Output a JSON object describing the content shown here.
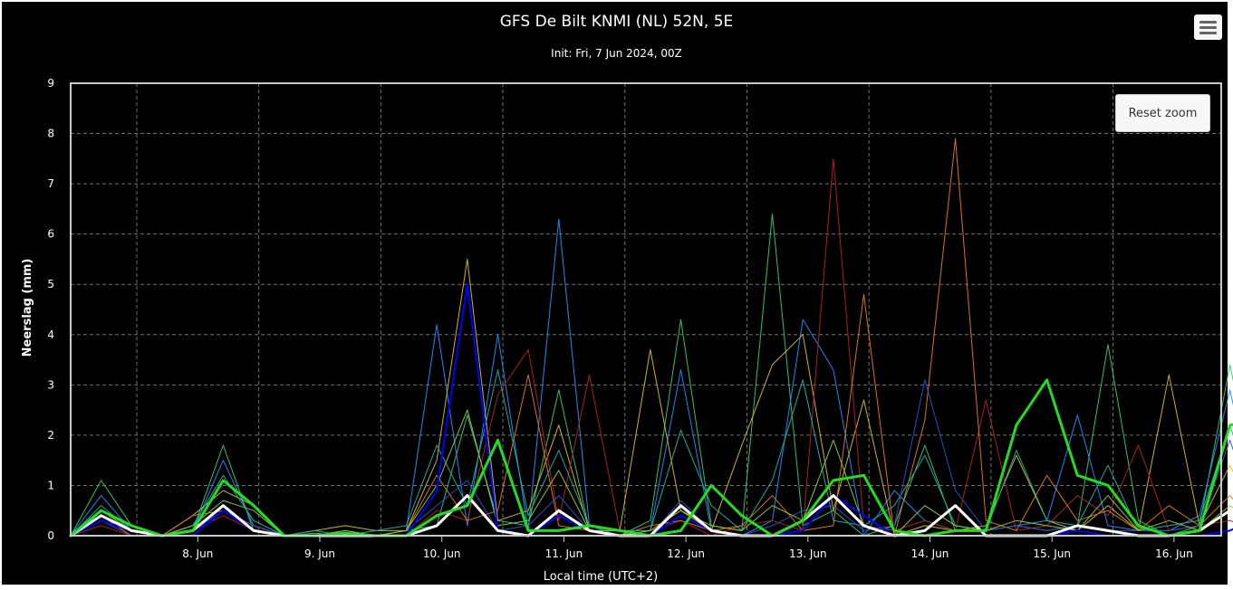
{
  "chart_data": {
    "type": "line",
    "title": "GFS De Bilt KNMI (NL) 52N, 5E",
    "subtitle": "Init: Fri, 7 Jun 2024, 00Z",
    "xlabel": "Local time (UTC+2)",
    "ylabel": "Neerslag (mm)",
    "ylim": [
      0,
      9
    ],
    "yticks": [
      "0",
      "1",
      "2",
      "3",
      "4",
      "5",
      "6",
      "7",
      "8",
      "9"
    ],
    "xlim": [
      "7 Jun 11:00",
      "16 Jun 20:00"
    ],
    "xtick_labels": [
      "8. Jun",
      "9. Jun",
      "10. Jun",
      "11. Jun",
      "12. Jun",
      "13. Jun",
      "14. Jun",
      "15. Jun",
      "16. Jun"
    ],
    "x_hours_from_7jun_11h": [
      0,
      6,
      12,
      18,
      24,
      30,
      36,
      42,
      48,
      54,
      60,
      66,
      72,
      78,
      84,
      90,
      96,
      102,
      108,
      114,
      120,
      126,
      132,
      138,
      144,
      150,
      156,
      162,
      168,
      174,
      180,
      186,
      192,
      198,
      204,
      210,
      216,
      222,
      228,
      234
    ],
    "grid": true,
    "background": "#000000",
    "series": [
      {
        "color": "#2ecc71",
        "width": 1,
        "values": [
          0,
          1.1,
          0.2,
          0,
          0.1,
          1.8,
          0.1,
          0,
          0.05,
          0,
          0,
          0.1,
          0.2,
          2.4,
          0.3,
          0.2,
          2.9,
          0.1,
          0,
          0.3,
          4.3,
          0.2,
          0.1,
          6.4,
          0.2,
          0.5,
          0,
          0.2,
          1.8,
          0.1,
          0.1,
          0.2,
          0.1,
          0.2,
          3.8,
          0.3,
          0,
          0.2,
          3.4,
          0.5
        ]
      },
      {
        "color": "#1e90ff",
        "width": 1,
        "values": [
          0,
          0.8,
          0.1,
          0,
          0.1,
          1.5,
          0.2,
          0,
          0,
          0.1,
          0,
          0.1,
          4.2,
          0.2,
          4.0,
          0.1,
          6.3,
          0.2,
          0,
          0.1,
          3.3,
          0.1,
          0,
          0.3,
          4.3,
          3.3,
          0,
          0.9,
          0.3,
          0.1,
          0.1,
          0.2,
          0.3,
          2.4,
          0.2,
          0.1,
          0.1,
          0.4,
          2.9,
          0.2
        ]
      },
      {
        "color": "#d4c020",
        "width": 1,
        "values": [
          0,
          0.3,
          0.1,
          0,
          0.4,
          0.9,
          0.6,
          0,
          0.1,
          0.2,
          0.1,
          0.1,
          1.5,
          5.5,
          0.3,
          0.5,
          2.2,
          0.1,
          0.1,
          3.7,
          0.5,
          0.1,
          1.8,
          3.4,
          4.0,
          0.5,
          2.7,
          0,
          0.2,
          0.1,
          0.2,
          1.6,
          0.3,
          0.1,
          0.6,
          0.1,
          3.2,
          0.2,
          1.4,
          0.2
        ]
      },
      {
        "color": "#b22222",
        "width": 1,
        "values": [
          0,
          0.2,
          0,
          0,
          0.1,
          0.4,
          0.1,
          0,
          0,
          0,
          0,
          0,
          0.5,
          0.3,
          2.8,
          3.7,
          0.3,
          3.2,
          0.1,
          0.1,
          0.3,
          0,
          0.2,
          0.3,
          0.1,
          7.5,
          0.2,
          0.1,
          0.3,
          0.1,
          2.7,
          0.1,
          0.2,
          0.8,
          0.4,
          1.8,
          0.1,
          0.2,
          0.3,
          0.1
        ]
      },
      {
        "color": "#e07b16",
        "width": 1,
        "values": [
          0,
          0.4,
          0,
          0,
          0.4,
          0.5,
          0.2,
          0,
          0,
          0,
          0,
          0.1,
          1.2,
          0.3,
          0.5,
          3.2,
          0.2,
          0.1,
          0,
          0.2,
          0.3,
          0.1,
          0.2,
          0.8,
          0.1,
          0.2,
          4.8,
          0,
          2.3,
          7.9,
          0.3,
          0.1,
          1.2,
          0.3,
          0.5,
          0.1,
          0.6,
          0.2,
          0.8,
          0.1
        ]
      },
      {
        "color": "#20b2aa",
        "width": 1,
        "values": [
          0,
          0.6,
          0.1,
          0,
          0.2,
          1.2,
          0.3,
          0,
          0.1,
          0,
          0.1,
          0.2,
          1.8,
          0.6,
          3.3,
          0.4,
          1.7,
          0.2,
          0.1,
          0.1,
          2.1,
          0.6,
          0.1,
          1.1,
          3.1,
          0.3,
          0.2,
          0.6,
          1.6,
          0.2,
          0.1,
          1.7,
          0.3,
          0.2,
          1.4,
          0.1,
          0.2,
          0.3,
          2.2,
          0.3
        ]
      },
      {
        "color": "#2f4fd0",
        "width": 1,
        "values": [
          0,
          0.3,
          0,
          0,
          0.1,
          0.5,
          0.2,
          0,
          0,
          0,
          0,
          0.1,
          0.6,
          1.1,
          0.1,
          0.2,
          0.8,
          0.1,
          0,
          0,
          0.7,
          0.1,
          0,
          0.2,
          0.5,
          0.6,
          0.1,
          0.2,
          3.1,
          0.9,
          0.1,
          0.2,
          0.1,
          0.2,
          0.1,
          0.1,
          0.1,
          0.2,
          1.9,
          0.1
        ]
      },
      {
        "color": "#9acd32",
        "width": 1,
        "values": [
          0,
          0.5,
          0.1,
          0,
          0.2,
          0.7,
          0.5,
          0,
          0,
          0.1,
          0,
          0.1,
          1.0,
          2.5,
          0.2,
          0.3,
          1.3,
          0.1,
          0,
          0.1,
          0.5,
          0.2,
          0.1,
          0.6,
          0.3,
          1.9,
          0.2,
          0,
          0.6,
          0.2,
          0.1,
          0.3,
          0.2,
          0.1,
          0.8,
          0.1,
          0.3,
          0.1,
          0.6,
          0.2
        ]
      },
      {
        "color": "#0000ff",
        "width": 2,
        "values": [
          0,
          0.3,
          0.1,
          0,
          0,
          0.5,
          0.1,
          0,
          0,
          0,
          0,
          0,
          0.9,
          5.0,
          0.1,
          0,
          0.4,
          0.1,
          0,
          0,
          0.4,
          0.1,
          0,
          0,
          0.1,
          0.8,
          0.4,
          0,
          0,
          0,
          0,
          0,
          0,
          0.1,
          0,
          0,
          0,
          0,
          0.1,
          0.4
        ]
      },
      {
        "color": "#ffffff",
        "width": 3,
        "values": [
          0,
          0.4,
          0.1,
          0,
          0.1,
          0.6,
          0.1,
          0,
          0,
          0,
          0,
          0,
          0.2,
          0.8,
          0.1,
          0,
          0.5,
          0.1,
          0,
          0,
          0.6,
          0.1,
          0,
          0,
          0.3,
          0.8,
          0.2,
          0,
          0.1,
          0.6,
          0,
          0,
          0,
          0.2,
          0.1,
          0,
          0,
          0.1,
          0.5,
          0.1
        ]
      },
      {
        "color": "#22dd22",
        "width": 3,
        "values": [
          0,
          0.5,
          0.2,
          0,
          0.1,
          1.1,
          0.6,
          0,
          0,
          0.05,
          0,
          0,
          0.4,
          0.6,
          1.9,
          0.1,
          0.1,
          0.2,
          0.1,
          0,
          0.1,
          1.0,
          0.4,
          0,
          0.3,
          1.1,
          1.2,
          0.1,
          0,
          0.1,
          0.1,
          2.2,
          3.1,
          1.2,
          1.0,
          0.2,
          0,
          0.1,
          2.2,
          2.3
        ]
      }
    ]
  },
  "ui": {
    "menu_icon": "hamburger-menu-icon",
    "reset_zoom_label": "Reset zoom"
  }
}
